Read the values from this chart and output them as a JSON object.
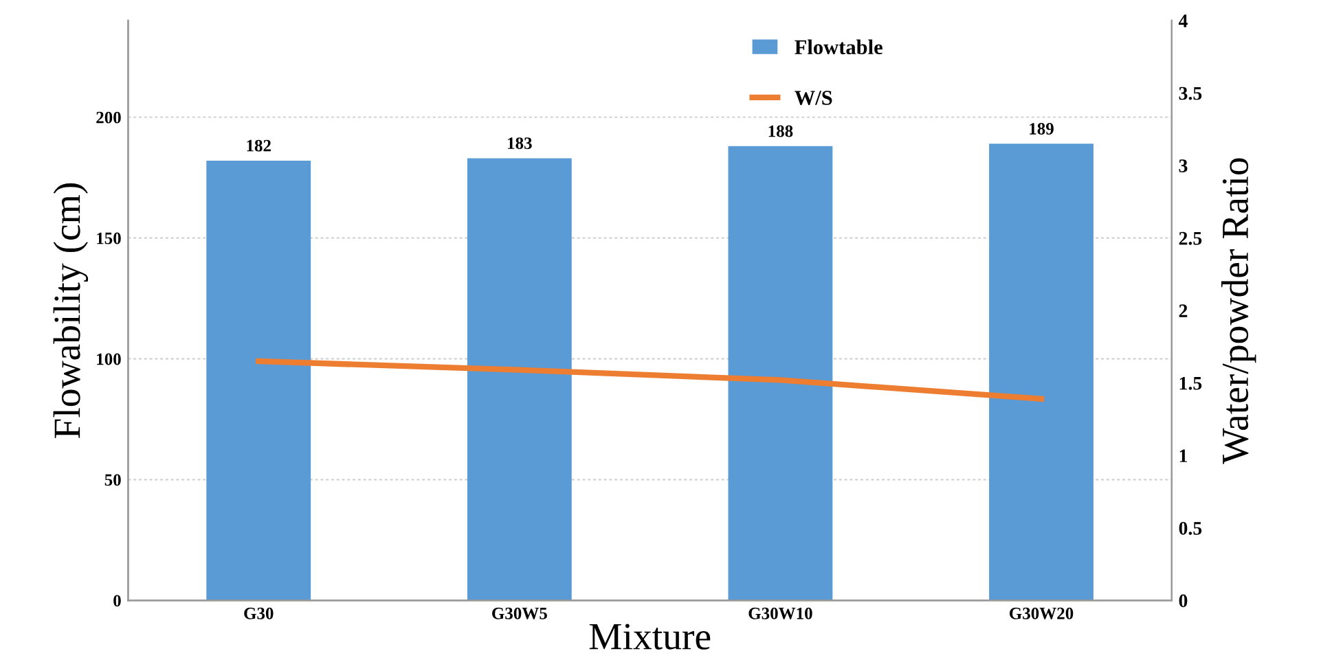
{
  "chart_data": {
    "type": "bar",
    "xlabel": "Mixture",
    "ylabel": "Flowability (cm)",
    "y2label": "Water/powder Ratio",
    "categories": [
      "G30",
      "G30W5",
      "G30W10",
      "G30W20"
    ],
    "series": [
      {
        "name": "Flowtable",
        "color": "#5b9bd5",
        "values": [
          182,
          183,
          188,
          189
        ],
        "value_labels": [
          "182",
          "183",
          "188",
          "189"
        ]
      },
      {
        "name": "W/S",
        "type": "line",
        "axis": "y2",
        "color": "#ed7d31",
        "values": [
          1.65,
          1.59,
          1.52,
          1.39
        ]
      }
    ],
    "ylim": [
      0,
      240
    ],
    "yticks": [
      0,
      50,
      100,
      150,
      200
    ],
    "y2lim": [
      0,
      4
    ],
    "y2ticks": [
      0,
      0.5,
      1,
      1.5,
      2,
      2.5,
      3,
      3.5,
      4
    ],
    "grid": "y",
    "legend": "top",
    "marker": "none",
    "line_style": "solid"
  }
}
